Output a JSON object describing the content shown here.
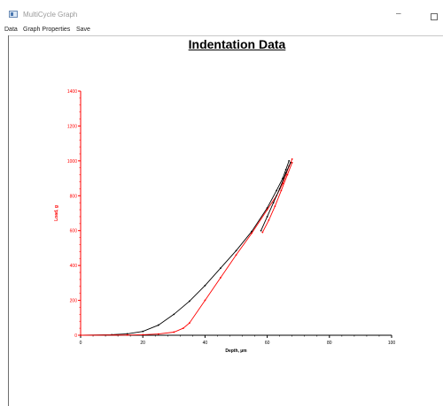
{
  "window": {
    "title": "MultiCycle Graph",
    "minimize_glyph": "–",
    "maximize_icon": "maximize-icon"
  },
  "menubar": {
    "items": [
      "Data",
      "Graph Properties",
      "Save"
    ]
  },
  "chart_data": {
    "type": "line",
    "title": "Indentation Data",
    "xlabel": "Depth, µm",
    "ylabel": "Load, g",
    "xlim": [
      0,
      100
    ],
    "ylim": [
      0,
      1400
    ],
    "x_ticks": [
      "0",
      "20",
      "40",
      "60",
      "80",
      "100"
    ],
    "y_ticks": [
      "0",
      "200",
      "400",
      "600",
      "800",
      "1000",
      "1200",
      "1400"
    ],
    "grid": false,
    "colors": {
      "axis_y": "#ff0000",
      "series_black": "#000000",
      "series_red": "#ff0000"
    },
    "series": [
      {
        "color": "#000000",
        "x": [
          0,
          10,
          15,
          20,
          25,
          30,
          35,
          40,
          45,
          50,
          55,
          60,
          63,
          65,
          66,
          67
        ],
        "y": [
          0,
          3,
          8,
          22,
          58,
          120,
          195,
          285,
          385,
          485,
          595,
          730,
          830,
          900,
          950,
          1000
        ]
      },
      {
        "color": "#ff0000",
        "x": [
          0,
          15,
          20,
          25,
          30,
          33,
          35,
          40,
          45,
          50,
          55,
          60,
          63,
          65,
          66,
          67,
          68
        ],
        "y": [
          0,
          1,
          3,
          7,
          18,
          40,
          70,
          200,
          330,
          460,
          585,
          720,
          800,
          870,
          920,
          970,
          1010
        ]
      },
      {
        "color": "#000000",
        "x": [
          58,
          60,
          62,
          64,
          66,
          67.5
        ],
        "y": [
          600,
          680,
          760,
          840,
          930,
          990
        ]
      },
      {
        "color": "#ff0000",
        "x": [
          58.5,
          60.5,
          62.5,
          64.5,
          66.5,
          68
        ],
        "y": [
          590,
          660,
          740,
          830,
          920,
          990
        ]
      }
    ]
  }
}
